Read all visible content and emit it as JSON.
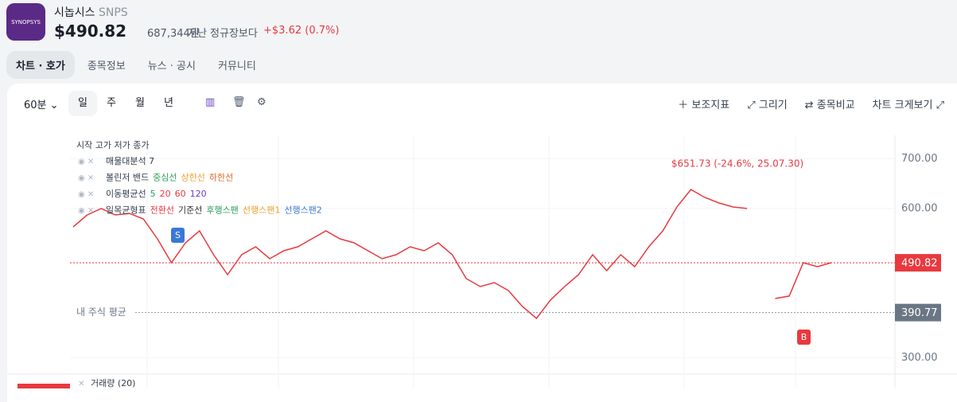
{
  "header": {
    "logo": "SYNOPSYS",
    "name": "시놉시스",
    "ticker": "SNPS",
    "price": "$490.82",
    "krw": "687,344원",
    "compare": "지난 정규장보다",
    "change": "+$3.62 (0.7%)"
  },
  "tabs": [
    "차트 · 호가",
    "종목정보",
    "뉴스 · 공시",
    "커뮤니티"
  ],
  "toolbar": {
    "interval": "60분",
    "periods": [
      "일",
      "주",
      "월",
      "년"
    ],
    "actions": [
      "보조지표",
      "그리기",
      "종목비교",
      "차트 크게보기"
    ]
  },
  "chart_data": {
    "type": "line",
    "ohlc_label": "시작 고가 저가 종가",
    "indicators": [
      {
        "name": "매물대분석 7",
        "items": []
      },
      {
        "name": "볼린저 밴드",
        "items": [
          {
            "text": "중심선",
            "color": "#2e9e5b"
          },
          {
            "text": "상한선",
            "color": "#f0a030"
          },
          {
            "text": "하한선",
            "color": "#e06a2a"
          }
        ]
      },
      {
        "name": "이동평균선",
        "items": [
          {
            "text": "5",
            "color": "#2e9e5b"
          },
          {
            "text": "20",
            "color": "#e8393f"
          },
          {
            "text": "60",
            "color": "#e8393f"
          },
          {
            "text": "120",
            "color": "#6a3fc7"
          }
        ]
      },
      {
        "name": "일목균형표",
        "items": [
          {
            "text": "전환선",
            "color": "#e8393f"
          },
          {
            "text": "기준선",
            "color": "#333333"
          },
          {
            "text": "후행스팬",
            "color": "#2e9e5b"
          },
          {
            "text": "선행스팬1",
            "color": "#f0a030"
          },
          {
            "text": "선행스팬2",
            "color": "#3a78d8"
          }
        ]
      }
    ],
    "series": [
      {
        "name": "종가",
        "color": "#e8393f",
        "values": [
          563,
          587,
          600,
          587,
          590,
          579,
          539,
          491,
          531,
          555,
          507,
          467,
          507,
          523,
          499,
          515,
          523,
          539,
          555,
          539,
          531,
          515,
          499,
          507,
          523,
          515,
          531,
          507,
          459,
          443,
          451,
          435,
          403,
          379,
          416,
          443,
          467,
          507,
          475,
          507,
          483,
          523,
          555,
          603,
          638,
          622,
          611,
          603,
          600,
          null,
          419,
          424,
          491,
          483,
          491
        ]
      }
    ],
    "ylim": [
      275,
      747
    ],
    "yticks": [
      {
        "value": 300,
        "label": "300.00"
      },
      {
        "value": 600,
        "label": "600.00"
      },
      {
        "value": 700,
        "label": "700.00"
      }
    ],
    "current_price": 490.82,
    "avg_price": 390.77,
    "avg_label": "내 주식 평균",
    "annotation": "$651.73 (-24.6%, 25.07.30)",
    "buy_marker": "B",
    "sell_marker": "S",
    "volume_label": "거래량 (20)"
  }
}
